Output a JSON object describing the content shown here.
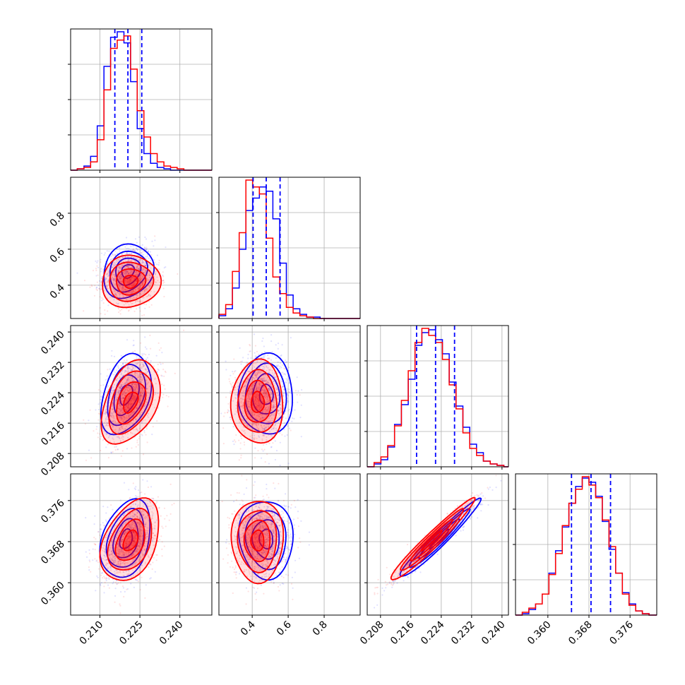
{
  "chart_data": {
    "type": "corner",
    "grid": true,
    "colors": {
      "blue": "#0000ff",
      "red": "#ff0000"
    },
    "series": [
      {
        "color": "#0000ff"
      },
      {
        "color": "#ff0000"
      }
    ],
    "params": [
      {
        "range": [
          0.199,
          0.252
        ],
        "ticks": [
          0.21,
          0.225,
          0.24
        ],
        "tick_labels": [
          "0.210",
          "0.225",
          "0.240"
        ],
        "quantiles_blue": [
          0.2156,
          0.2205,
          0.2257
        ]
      },
      {
        "range": [
          0.215,
          1.0
        ],
        "ticks": [
          0.4,
          0.6,
          0.8
        ],
        "tick_labels": [
          "0.4",
          "0.6",
          "0.8"
        ],
        "quantiles_blue": [
          0.405,
          0.478,
          0.555
        ]
      },
      {
        "range": [
          0.2045,
          0.2417
        ],
        "ticks": [
          0.208,
          0.216,
          0.224,
          0.232,
          0.24
        ],
        "tick_labels": [
          "0.208",
          "0.216",
          "0.224",
          "0.232",
          "0.240"
        ],
        "quantiles_blue": [
          0.2175,
          0.2225,
          0.2275
        ]
      },
      {
        "range": [
          0.3537,
          0.3812
        ],
        "ticks": [
          0.36,
          0.368,
          0.376
        ],
        "tick_labels": [
          "0.360",
          "0.368",
          "0.376"
        ],
        "quantiles_blue": [
          0.3646,
          0.3684,
          0.3722
        ]
      }
    ],
    "histograms": [
      {
        "bins": [
          0.199,
          0.2015,
          0.204,
          0.2065,
          0.209,
          0.2115,
          0.214,
          0.2165,
          0.219,
          0.2215,
          0.224,
          0.2265,
          0.229,
          0.2315,
          0.234,
          0.2365,
          0.239,
          0.2415,
          0.244,
          0.2465,
          0.249,
          0.252
        ],
        "blue": [
          0.0,
          0.01,
          0.03,
          0.1,
          0.32,
          0.75,
          0.96,
          1.0,
          0.92,
          0.64,
          0.3,
          0.12,
          0.05,
          0.02,
          0.01,
          0.0,
          0.0,
          0.0,
          0.0,
          0.0,
          0.0
        ],
        "red": [
          0.0,
          0.01,
          0.02,
          0.06,
          0.22,
          0.58,
          0.88,
          0.94,
          0.97,
          0.73,
          0.43,
          0.24,
          0.12,
          0.06,
          0.03,
          0.02,
          0.01,
          0.0,
          0.0,
          0.0,
          0.0
        ]
      },
      {
        "bins": [
          0.215,
          0.2525,
          0.29,
          0.3275,
          0.365,
          0.4025,
          0.44,
          0.4775,
          0.515,
          0.5525,
          0.59,
          0.6275,
          0.665,
          0.7025,
          0.74,
          0.7775,
          0.815,
          0.8525,
          0.89,
          0.9275,
          0.965,
          1.0
        ],
        "blue": [
          0.02,
          0.07,
          0.22,
          0.5,
          0.78,
          0.87,
          0.95,
          0.92,
          0.72,
          0.4,
          0.17,
          0.07,
          0.03,
          0.01,
          0.01,
          0.0,
          0.0,
          0.0,
          0.0,
          0.0,
          0.0
        ],
        "red": [
          0.03,
          0.1,
          0.34,
          0.62,
          1.0,
          0.95,
          0.9,
          0.58,
          0.3,
          0.18,
          0.08,
          0.04,
          0.02,
          0.01,
          0.0,
          0.0,
          0.0,
          0.0,
          0.0,
          0.0,
          0.0
        ]
      },
      {
        "bins": [
          0.2045,
          0.2063,
          0.2081,
          0.2099,
          0.2117,
          0.2135,
          0.2153,
          0.2171,
          0.2189,
          0.2207,
          0.2225,
          0.2243,
          0.2261,
          0.2279,
          0.2297,
          0.2315,
          0.2333,
          0.2351,
          0.2369,
          0.2387,
          0.2405,
          0.2417
        ],
        "blue": [
          0.0,
          0.02,
          0.05,
          0.14,
          0.3,
          0.44,
          0.62,
          0.86,
          0.95,
          0.97,
          0.9,
          0.8,
          0.6,
          0.43,
          0.28,
          0.16,
          0.1,
          0.04,
          0.02,
          0.01,
          0.0
        ],
        "red": [
          0.0,
          0.03,
          0.07,
          0.15,
          0.29,
          0.47,
          0.68,
          0.88,
          0.98,
          0.93,
          0.88,
          0.76,
          0.58,
          0.41,
          0.24,
          0.13,
          0.08,
          0.04,
          0.02,
          0.01,
          0.0
        ]
      },
      {
        "bins": [
          0.3537,
          0.355,
          0.3563,
          0.3576,
          0.3589,
          0.3602,
          0.3615,
          0.3628,
          0.3641,
          0.3654,
          0.3667,
          0.368,
          0.3693,
          0.3706,
          0.3719,
          0.3732,
          0.3745,
          0.3758,
          0.3771,
          0.3784,
          0.3797,
          0.3812
        ],
        "blue": [
          0.0,
          0.01,
          0.04,
          0.08,
          0.15,
          0.3,
          0.46,
          0.63,
          0.8,
          0.92,
          0.98,
          0.95,
          0.85,
          0.67,
          0.47,
          0.3,
          0.16,
          0.08,
          0.03,
          0.01,
          0.0
        ],
        "red": [
          0.0,
          0.02,
          0.05,
          0.08,
          0.15,
          0.29,
          0.44,
          0.64,
          0.8,
          0.9,
          0.99,
          0.93,
          0.84,
          0.68,
          0.49,
          0.3,
          0.15,
          0.07,
          0.03,
          0.01,
          0.0
        ]
      }
    ],
    "pair_panels": [
      {
        "row": 1,
        "col": 0,
        "blue": {
          "mean": [
            0.2205,
            0.478
          ],
          "sd": [
            0.0047,
            0.075
          ],
          "rho": 0.15
        },
        "red": {
          "mean": [
            0.2215,
            0.42
          ],
          "sd": [
            0.0055,
            0.072
          ],
          "rho": 0.05
        }
      },
      {
        "row": 2,
        "col": 0,
        "blue": {
          "mean": [
            0.2198,
            0.2235
          ],
          "sd": [
            0.0047,
            0.0053
          ],
          "rho": 0.35
        },
        "red": {
          "mean": [
            0.2215,
            0.2215
          ],
          "sd": [
            0.0055,
            0.0055
          ],
          "rho": 0.4
        }
      },
      {
        "row": 2,
        "col": 1,
        "blue": {
          "mean": [
            0.478,
            0.2235
          ],
          "sd": [
            0.075,
            0.0053
          ],
          "rho": 0.0
        },
        "red": {
          "mean": [
            0.43,
            0.2215
          ],
          "sd": [
            0.072,
            0.0055
          ],
          "rho": 0.0
        }
      },
      {
        "row": 3,
        "col": 0,
        "blue": {
          "mean": [
            0.2198,
            0.3685
          ],
          "sd": [
            0.0047,
            0.0038
          ],
          "rho": 0.3
        },
        "red": {
          "mean": [
            0.2215,
            0.3682
          ],
          "sd": [
            0.0055,
            0.004
          ],
          "rho": 0.38
        }
      },
      {
        "row": 3,
        "col": 1,
        "blue": {
          "mean": [
            0.478,
            0.3685
          ],
          "sd": [
            0.075,
            0.0038
          ],
          "rho": -0.05
        },
        "red": {
          "mean": [
            0.43,
            0.3682
          ],
          "sd": [
            0.072,
            0.004
          ],
          "rho": 0.0
        }
      },
      {
        "row": 3,
        "col": 2,
        "blue": {
          "mean": [
            0.2235,
            0.3685
          ],
          "sd": [
            0.0053,
            0.0038
          ],
          "rho": 0.97
        },
        "red": {
          "mean": [
            0.2215,
            0.3682
          ],
          "sd": [
            0.0055,
            0.004
          ],
          "rho": 0.97
        }
      }
    ],
    "contour_levels_sigma": [
      0.5,
      1.0,
      1.5,
      2.0
    ]
  }
}
